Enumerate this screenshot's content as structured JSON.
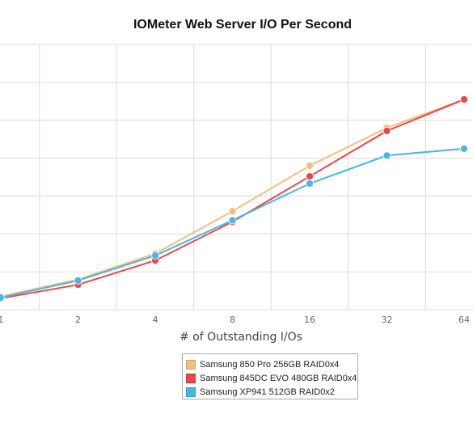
{
  "chart_data": {
    "type": "line",
    "title": "IOMeter Web Server I/O Per Second",
    "xlabel": "# of Outstanding I/Os",
    "ylabel": "",
    "categories": [
      "1",
      "2",
      "4",
      "8",
      "16",
      "32",
      "64"
    ],
    "ylim": [
      0,
      7
    ],
    "grid": true,
    "legend_position": "bottom",
    "series": [
      {
        "name": "Samsung 850 Pro 256GB RAID0x4",
        "color": "#f0c080",
        "values": [
          0.35,
          0.8,
          1.48,
          2.6,
          3.8,
          4.8,
          5.55
        ]
      },
      {
        "name": "Samsung 845DC EVO 480GB RAID0x4",
        "color": "#e84848",
        "values": [
          0.3,
          0.66,
          1.3,
          2.32,
          3.52,
          4.72,
          5.55
        ]
      },
      {
        "name": "Samsung XP941 512GB RAID0x2",
        "color": "#4ab4e6",
        "values": [
          0.32,
          0.77,
          1.43,
          2.36,
          3.33,
          4.07,
          4.25
        ]
      }
    ]
  }
}
